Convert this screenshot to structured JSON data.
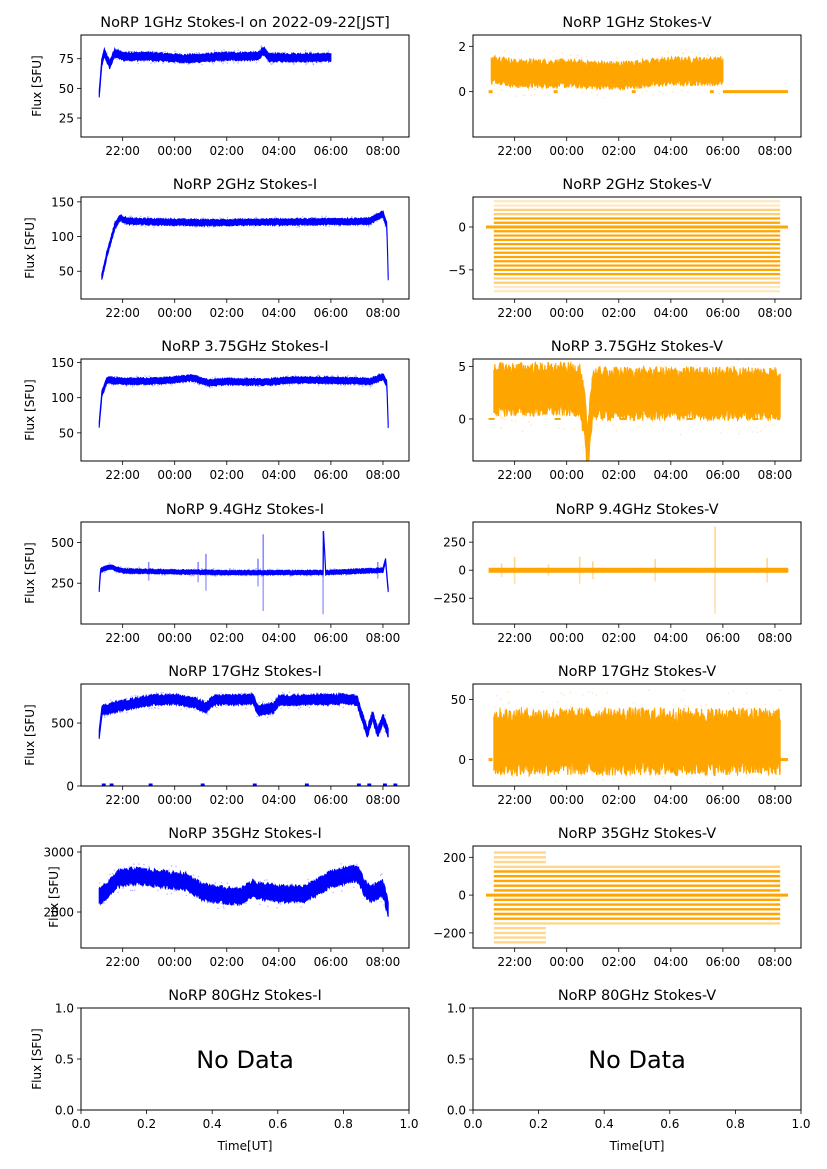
{
  "figure": {
    "title_date_suffix": " on 2022-09-22[JST]",
    "ylabel": "Flux [SFU]",
    "xlabel": "Time[UT]",
    "no_data_text": "No Data",
    "colors": {
      "stokes_i": "#0000ff",
      "stokes_v": "#ffa500",
      "axes": "#000000"
    }
  },
  "chart_data": [
    {
      "type": "scatter",
      "panel": "1GHz-I",
      "title": "NoRP 1GHz Stokes-I on 2022-09-22[JST]",
      "xlabel": "",
      "ylabel": "Flux [SFU]",
      "xtick_labels": [
        "22:00",
        "00:00",
        "02:00",
        "04:00",
        "06:00",
        "08:00"
      ],
      "xlim_hours": [
        20.4,
        33.0
      ],
      "ylim": [
        9,
        95
      ],
      "yticks": [
        25,
        50,
        75
      ],
      "series": [
        {
          "name": "Stokes-I",
          "color": "#0000ff",
          "start": 21.1,
          "end": 30.0,
          "profile": [
            [
              21.1,
              45
            ],
            [
              21.2,
              72
            ],
            [
              21.3,
              80
            ],
            [
              21.5,
              70
            ],
            [
              21.7,
              80
            ],
            [
              22.0,
              77
            ],
            [
              23.0,
              77
            ],
            [
              24.5,
              75
            ],
            [
              26.0,
              77
            ],
            [
              27.2,
              77
            ],
            [
              27.4,
              82
            ],
            [
              27.6,
              76
            ],
            [
              30.0,
              76
            ]
          ],
          "spread": 3
        }
      ]
    },
    {
      "type": "scatter",
      "panel": "1GHz-V",
      "title": "NoRP 1GHz Stokes-V",
      "xlabel": "",
      "ylabel": "",
      "xtick_labels": [
        "22:00",
        "00:00",
        "02:00",
        "04:00",
        "06:00",
        "08:00"
      ],
      "xlim_hours": [
        20.4,
        33.0
      ],
      "ylim": [
        -2,
        2.5
      ],
      "yticks": [
        0,
        2
      ],
      "series": [
        {
          "name": "Stokes-V",
          "color": "#ffa500",
          "start": 21.1,
          "end": 30.0,
          "profile": [
            [
              21.1,
              0.9
            ],
            [
              21.3,
              1.0
            ],
            [
              22.0,
              0.8
            ],
            [
              24.0,
              0.8
            ],
            [
              26.0,
              0.7
            ],
            [
              27.0,
              0.8
            ],
            [
              28.0,
              0.9
            ],
            [
              30.0,
              0.9
            ]
          ],
          "spread": 0.5,
          "zero_line_after": [
            30.0,
            32.5
          ]
        }
      ]
    },
    {
      "type": "scatter",
      "panel": "2GHz-I",
      "title": "NoRP 2GHz Stokes-I",
      "xlabel": "",
      "ylabel": "Flux [SFU]",
      "xtick_labels": [
        "22:00",
        "00:00",
        "02:00",
        "04:00",
        "06:00",
        "08:00"
      ],
      "xlim_hours": [
        20.4,
        33.0
      ],
      "ylim": [
        10,
        157
      ],
      "yticks": [
        50,
        100,
        150
      ],
      "series": [
        {
          "name": "Stokes-I",
          "color": "#0000ff",
          "start": 21.2,
          "end": 32.2,
          "profile": [
            [
              21.2,
              42
            ],
            [
              21.4,
              75
            ],
            [
              21.7,
              115
            ],
            [
              21.9,
              127
            ],
            [
              22.2,
              122
            ],
            [
              25.0,
              120
            ],
            [
              28.0,
              121
            ],
            [
              31.5,
              122
            ],
            [
              32.0,
              133
            ],
            [
              32.15,
              115
            ],
            [
              32.2,
              42
            ]
          ],
          "spread": 4
        }
      ]
    },
    {
      "type": "scatter",
      "panel": "2GHz-V",
      "title": "NoRP 2GHz Stokes-V",
      "xlabel": "",
      "ylabel": "",
      "xtick_labels": [
        "22:00",
        "00:00",
        "02:00",
        "04:00",
        "06:00",
        "08:00"
      ],
      "xlim_hours": [
        20.4,
        33.0
      ],
      "ylim": [
        -8.4,
        3.5
      ],
      "yticks": [
        -5,
        0
      ],
      "series": [
        {
          "name": "Stokes-V",
          "color": "#ffa500",
          "start": 21.2,
          "end": 32.2,
          "quantized_levels": [
            3,
            2.5,
            2,
            1.5,
            1,
            0.5,
            0,
            -0.5,
            -1,
            -1.5,
            -2,
            -2.5,
            -3,
            -3.5,
            -4,
            -4.5,
            -5,
            -5.5,
            -6,
            -6.5,
            -7,
            -7.5
          ]
        }
      ]
    },
    {
      "type": "scatter",
      "panel": "3.75GHz-I",
      "title": "NoRP 3.75GHz Stokes-I",
      "xlabel": "",
      "ylabel": "Flux [SFU]",
      "xtick_labels": [
        "22:00",
        "00:00",
        "02:00",
        "04:00",
        "06:00",
        "08:00"
      ],
      "xlim_hours": [
        20.4,
        33.0
      ],
      "ylim": [
        10,
        155
      ],
      "yticks": [
        50,
        100,
        150
      ],
      "series": [
        {
          "name": "Stokes-I",
          "color": "#0000ff",
          "start": 21.1,
          "end": 32.2,
          "profile": [
            [
              21.1,
              62
            ],
            [
              21.2,
              105
            ],
            [
              21.4,
              125
            ],
            [
              22.0,
              123
            ],
            [
              23.5,
              124
            ],
            [
              24.7,
              128
            ],
            [
              25.3,
              121
            ],
            [
              26.0,
              123
            ],
            [
              27.5,
              122
            ],
            [
              28.5,
              125
            ],
            [
              30.0,
              125
            ],
            [
              31.5,
              123
            ],
            [
              32.0,
              130
            ],
            [
              32.15,
              120
            ],
            [
              32.2,
              60
            ]
          ],
          "spread": 4
        }
      ]
    },
    {
      "type": "scatter",
      "panel": "3.75GHz-V",
      "title": "NoRP 3.75GHz Stokes-V",
      "xlabel": "",
      "ylabel": "",
      "xtick_labels": [
        "22:00",
        "00:00",
        "02:00",
        "04:00",
        "06:00",
        "08:00"
      ],
      "xlim_hours": [
        20.4,
        33.0
      ],
      "ylim": [
        -4,
        5.7
      ],
      "yticks": [
        0,
        5
      ],
      "series": [
        {
          "name": "Stokes-V",
          "color": "#ffa500",
          "start": 21.2,
          "end": 32.2,
          "profile": [
            [
              21.2,
              2.8
            ],
            [
              24.5,
              2.8
            ],
            [
              24.7,
              0
            ],
            [
              24.8,
              -3.5
            ],
            [
              24.9,
              0
            ],
            [
              25.0,
              2.4
            ],
            [
              32.2,
              2.4
            ]
          ],
          "spread": 2.0
        }
      ]
    },
    {
      "type": "scatter",
      "panel": "9.4GHz-I",
      "title": "NoRP 9.4GHz Stokes-I",
      "xlabel": "",
      "ylabel": "Flux [SFU]",
      "xtick_labels": [
        "22:00",
        "00:00",
        "02:00",
        "04:00",
        "06:00",
        "08:00"
      ],
      "xlim_hours": [
        20.4,
        33.0
      ],
      "ylim": [
        0,
        625
      ],
      "yticks": [
        250,
        500
      ],
      "series": [
        {
          "name": "Stokes-I",
          "color": "#0000ff",
          "start": 21.1,
          "end": 32.2,
          "profile": [
            [
              21.1,
              205
            ],
            [
              21.15,
              330
            ],
            [
              21.5,
              350
            ],
            [
              22.0,
              325
            ],
            [
              26.0,
              315
            ],
            [
              29.7,
              315
            ],
            [
              29.72,
              560
            ],
            [
              29.8,
              315
            ],
            [
              32.0,
              330
            ],
            [
              32.1,
              390
            ],
            [
              32.2,
              205
            ]
          ],
          "spread": 12,
          "spikes": [
            [
              23.0,
              380
            ],
            [
              24.9,
              380
            ],
            [
              25.2,
              430
            ],
            [
              27.2,
              400
            ],
            [
              27.4,
              550
            ],
            [
              29.7,
              570
            ],
            [
              31.8,
              380
            ]
          ]
        }
      ]
    },
    {
      "type": "scatter",
      "panel": "9.4GHz-V",
      "title": "NoRP 9.4GHz Stokes-V",
      "xlabel": "",
      "ylabel": "",
      "xtick_labels": [
        "22:00",
        "00:00",
        "02:00",
        "04:00",
        "06:00",
        "08:00"
      ],
      "xlim_hours": [
        20.4,
        33.0
      ],
      "ylim": [
        -480,
        430
      ],
      "yticks": [
        -250,
        0,
        250
      ],
      "series": [
        {
          "name": "Stokes-V",
          "color": "#ffa500",
          "start": 21.1,
          "end": 32.5,
          "profile": [
            [
              21.1,
              0
            ],
            [
              32.5,
              0
            ]
          ],
          "spread": 10,
          "spikes": [
            [
              21.5,
              60
            ],
            [
              22.0,
              120
            ],
            [
              23.3,
              50
            ],
            [
              24.5,
              120
            ],
            [
              25.0,
              80
            ],
            [
              27.4,
              100
            ],
            [
              29.7,
              390
            ],
            [
              31.7,
              110
            ]
          ]
        }
      ]
    },
    {
      "type": "scatter",
      "panel": "17GHz-I",
      "title": "NoRP 17GHz Stokes-I",
      "xlabel": "",
      "ylabel": "Flux [SFU]",
      "xtick_labels": [
        "22:00",
        "00:00",
        "02:00",
        "04:00",
        "06:00",
        "08:00"
      ],
      "xlim_hours": [
        20.4,
        33.0
      ],
      "ylim": [
        0,
        810
      ],
      "yticks": [
        0,
        500
      ],
      "series": [
        {
          "name": "Stokes-I",
          "color": "#0000ff",
          "start": 21.1,
          "end": 32.2,
          "profile": [
            [
              21.1,
              410
            ],
            [
              21.2,
              600
            ],
            [
              22.0,
              640
            ],
            [
              23.0,
              680
            ],
            [
              24.0,
              690
            ],
            [
              24.8,
              660
            ],
            [
              25.2,
              620
            ],
            [
              25.5,
              680
            ],
            [
              27.0,
              690
            ],
            [
              27.2,
              600
            ],
            [
              27.8,
              620
            ],
            [
              28.0,
              680
            ],
            [
              30.5,
              690
            ],
            [
              31.0,
              680
            ],
            [
              31.4,
              420
            ],
            [
              31.6,
              560
            ],
            [
              31.8,
              420
            ],
            [
              32.0,
              540
            ],
            [
              32.2,
              420
            ]
          ],
          "spread": 35,
          "zero_marks": [
            21.2,
            21.5,
            23.0,
            25.0,
            27.0,
            29.0,
            31.0,
            31.4,
            32.0,
            32.4
          ]
        }
      ]
    },
    {
      "type": "scatter",
      "panel": "17GHz-V",
      "title": "NoRP 17GHz Stokes-V",
      "xlabel": "",
      "ylabel": "",
      "xtick_labels": [
        "22:00",
        "00:00",
        "02:00",
        "04:00",
        "06:00",
        "08:00"
      ],
      "xlim_hours": [
        20.4,
        33.0
      ],
      "ylim": [
        -22,
        63
      ],
      "yticks": [
        0,
        50
      ],
      "series": [
        {
          "name": "Stokes-V",
          "color": "#ffa500",
          "start": 21.2,
          "end": 32.2,
          "profile": [
            [
              21.2,
              15
            ],
            [
              32.2,
              15
            ]
          ],
          "spread": 22,
          "zero_line_after": [
            32.2,
            32.5
          ]
        }
      ]
    },
    {
      "type": "scatter",
      "panel": "35GHz-I",
      "title": "NoRP 35GHz Stokes-I",
      "xlabel": "",
      "ylabel": "Flux [SFU]",
      "xtick_labels": [
        "22:00",
        "00:00",
        "02:00",
        "04:00",
        "06:00",
        "08:00"
      ],
      "xlim_hours": [
        20.4,
        33.0
      ],
      "ylim": [
        1400,
        3100
      ],
      "yticks": [
        2000,
        3000
      ],
      "series": [
        {
          "name": "Stokes-I",
          "color": "#0000ff",
          "start": 21.1,
          "end": 32.2,
          "profile": [
            [
              21.1,
              2250
            ],
            [
              21.5,
              2400
            ],
            [
              21.8,
              2550
            ],
            [
              22.5,
              2600
            ],
            [
              23.5,
              2550
            ],
            [
              24.5,
              2500
            ],
            [
              25.0,
              2350
            ],
            [
              25.5,
              2300
            ],
            [
              26.5,
              2250
            ],
            [
              27.0,
              2400
            ],
            [
              27.2,
              2350
            ],
            [
              28.0,
              2300
            ],
            [
              29.0,
              2300
            ],
            [
              30.0,
              2550
            ],
            [
              31.0,
              2650
            ],
            [
              31.3,
              2400
            ],
            [
              31.5,
              2300
            ],
            [
              32.0,
              2400
            ],
            [
              32.2,
              2050
            ]
          ],
          "spread": 120
        }
      ]
    },
    {
      "type": "scatter",
      "panel": "35GHz-V",
      "title": "NoRP 35GHz Stokes-V",
      "xlabel": "",
      "ylabel": "",
      "xtick_labels": [
        "22:00",
        "00:00",
        "02:00",
        "04:00",
        "06:00",
        "08:00"
      ],
      "xlim_hours": [
        20.4,
        33.0
      ],
      "ylim": [
        -280,
        260
      ],
      "yticks": [
        -200,
        0,
        200
      ],
      "series": [
        {
          "name": "Stokes-V",
          "color": "#ffa500",
          "start": 21.2,
          "end": 32.2,
          "quantized_step": 25,
          "range_early": [
            -250,
            225
          ],
          "range_late": [
            -150,
            150
          ]
        }
      ]
    },
    {
      "type": "table",
      "panel": "80GHz-I",
      "title": "NoRP 80GHz Stokes-I",
      "xlabel": "Time[UT]",
      "ylabel": "Flux [SFU]",
      "xtick_labels": [
        "0.0",
        "0.2",
        "0.4",
        "0.6",
        "0.8",
        "1.0"
      ],
      "ytick_labels": [
        "0.0",
        "0.5",
        "1.0"
      ],
      "xlim": [
        0,
        1
      ],
      "ylim": [
        0,
        1
      ],
      "annotation": "No Data",
      "series": []
    },
    {
      "type": "table",
      "panel": "80GHz-V",
      "title": "NoRP 80GHz Stokes-V",
      "xlabel": "Time[UT]",
      "ylabel": "",
      "xtick_labels": [
        "0.0",
        "0.2",
        "0.4",
        "0.6",
        "0.8",
        "1.0"
      ],
      "ytick_labels": [
        "0.0",
        "0.5",
        "1.0"
      ],
      "xlim": [
        0,
        1
      ],
      "ylim": [
        0,
        1
      ],
      "annotation": "No Data",
      "series": []
    }
  ]
}
